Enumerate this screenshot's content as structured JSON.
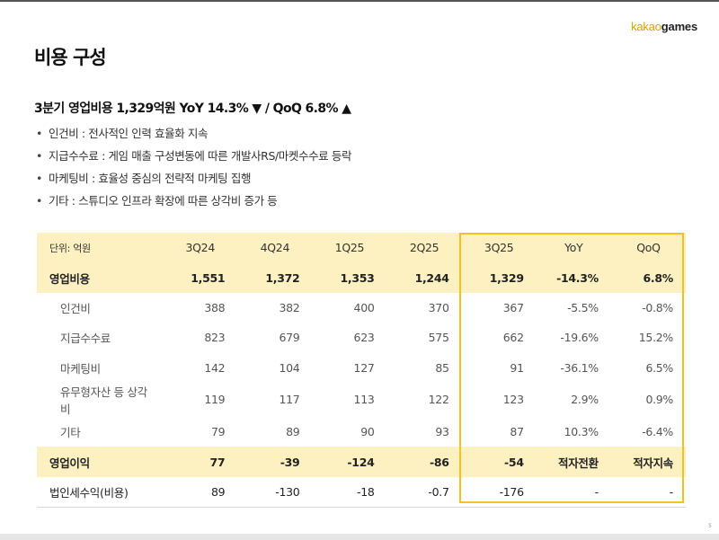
{
  "logo": {
    "part1": "kakao",
    "part2": "games"
  },
  "title": "비용 구성",
  "summary": "3분기 영업비용 1,329억원 YoY 14.3% ▼ / QoQ 6.8% ▲",
  "bullet_symbol": "•",
  "bullets": [
    "인건비 : 전사적인 인력 효율화 지속",
    "지급수수료 : 게임 매출 구성변동에 따른 개발사RS/마켓수수료 등락",
    "마케팅비 : 효율성 중심의 전략적 마케팅 집행",
    "기타 : 스튜디오 인프라 확장에 따른 상각비 증가 등"
  ],
  "table": {
    "headers": [
      "단위: 억원",
      "3Q24",
      "4Q24",
      "1Q25",
      "2Q25",
      "3Q25",
      "YoY",
      "QoQ"
    ],
    "rows": [
      [
        "영업비용",
        "1,551",
        "1,372",
        "1,353",
        "1,244",
        "1,329",
        "-14.3%",
        "6.8%"
      ],
      [
        "인건비",
        "388",
        "382",
        "400",
        "370",
        "367",
        "-5.5%",
        "-0.8%"
      ],
      [
        "지급수수료",
        "823",
        "679",
        "623",
        "575",
        "662",
        "-19.6%",
        "15.2%"
      ],
      [
        "마케팅비",
        "142",
        "104",
        "127",
        "85",
        "91",
        "-36.1%",
        "6.5%"
      ],
      [
        "유무형자산 등 상각비",
        "119",
        "117",
        "113",
        "122",
        "123",
        "2.9%",
        "0.9%"
      ],
      [
        "기타",
        "79",
        "89",
        "90",
        "93",
        "87",
        "10.3%",
        "-6.4%"
      ],
      [
        "영업이익",
        "77",
        "-39",
        "-124",
        "-86",
        "-54",
        "적자전환",
        "적자지속"
      ],
      [
        "법인세수익(비용)",
        "89",
        "-130",
        "-18",
        "-0.7",
        "-176",
        "-",
        "-"
      ]
    ]
  },
  "page_number": "5",
  "colors": {
    "accent": "#f4c21f",
    "header_fill": "#fdf1c2",
    "logo_kakao": "#d9a400"
  }
}
